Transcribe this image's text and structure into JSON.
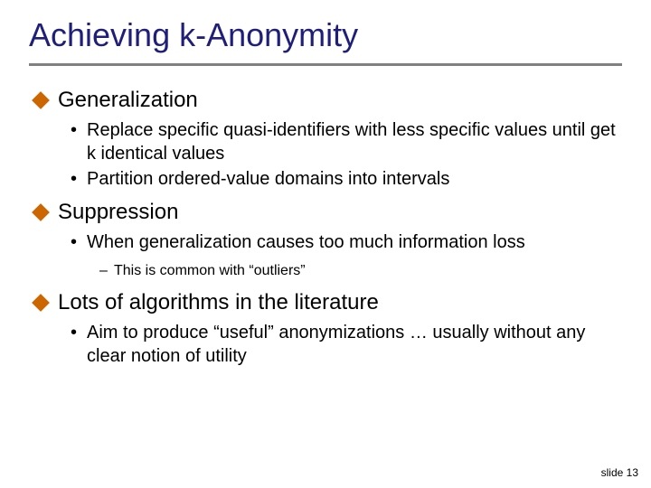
{
  "title": "Achieving k-Anonymity",
  "colors": {
    "title_color": "#1f1f7a",
    "rule_color": "#808080",
    "diamond_color": "#cc6600",
    "text_color": "#000000",
    "background": "#ffffff"
  },
  "typography": {
    "title_fontsize": 36,
    "section_fontsize": 24,
    "bullet_fontsize": 20,
    "subbullet_fontsize": 16,
    "footer_fontsize": 12
  },
  "sections": [
    {
      "heading": "Generalization",
      "bullets": [
        "Replace specific quasi-identifiers with less specific values until get k identical values",
        "Partition ordered-value domains into intervals"
      ],
      "subbullets": []
    },
    {
      "heading": "Suppression",
      "bullets": [
        "When generalization causes too much information loss"
      ],
      "subbullets": [
        "This is common with “outliers”"
      ]
    },
    {
      "heading": "Lots of algorithms in the literature",
      "bullets": [
        "Aim to produce “useful” anonymizations … usually without any clear notion of utility"
      ],
      "subbullets": []
    }
  ],
  "footer": "slide 13"
}
